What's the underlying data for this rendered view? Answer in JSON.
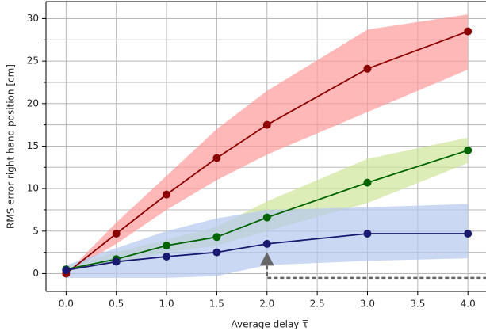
{
  "chart_data": {
    "type": "line",
    "xlabel": "Average delay τ̅",
    "ylabel": "RMS error right hand position [cm]",
    "x": [
      0,
      0.5,
      1,
      1.5,
      2,
      3,
      4
    ],
    "xlim": [
      -0.2,
      4.18
    ],
    "ylim": [
      -2.1,
      32
    ],
    "xticks": [
      {
        "value": 0,
        "label": "0.0"
      },
      {
        "value": 0.5,
        "label": "0.5"
      },
      {
        "value": 1,
        "label": "1.0"
      },
      {
        "value": 1.5,
        "label": "1.5"
      },
      {
        "value": 2,
        "label": "2.0"
      },
      {
        "value": 2.5,
        "label": "2.5"
      },
      {
        "value": 3,
        "label": "3.0"
      },
      {
        "value": 3.5,
        "label": "3.5"
      },
      {
        "value": 4,
        "label": "4.0"
      }
    ],
    "yticks": [
      0,
      5,
      10,
      15,
      20,
      25,
      30
    ],
    "yminorticks": [
      2.5,
      7.5,
      12.5,
      17.5,
      22.5,
      27.5
    ],
    "grid": true,
    "series": [
      {
        "color": "#8b0000",
        "band_color": "#ff9a9a",
        "values": [
          0,
          4.7,
          9.3,
          13.6,
          17.5,
          24.1,
          28.5
        ],
        "lower": [
          0,
          3.5,
          7.5,
          11,
          14,
          19,
          24
        ],
        "upper": [
          0,
          6,
          11.5,
          17,
          21.5,
          28.7,
          30.5
        ]
      },
      {
        "color": "#006400",
        "band_color": "#cfe69a",
        "values": [
          0.5,
          1.7,
          3.3,
          4.3,
          6.6,
          10.7,
          14.5
        ],
        "lower": [
          0.3,
          1.2,
          2.5,
          3.3,
          5,
          8.3,
          13
        ],
        "upper": [
          0.8,
          2.5,
          4,
          5.5,
          8.5,
          13.5,
          16
        ]
      },
      {
        "color": "#191970",
        "band_color": "#b4c8f0",
        "values": [
          0.4,
          1.4,
          2.0,
          2.5,
          3.5,
          4.7,
          4.7
        ],
        "lower": [
          -0.5,
          -0.5,
          -0.5,
          -0.3,
          1,
          1.5,
          1.8
        ],
        "upper": [
          1,
          3,
          5,
          6.5,
          7.5,
          7.8,
          8.2
        ]
      }
    ],
    "marker": {
      "x": 2,
      "y": 1.5,
      "line_y": -0.5,
      "color": "#666666"
    }
  }
}
